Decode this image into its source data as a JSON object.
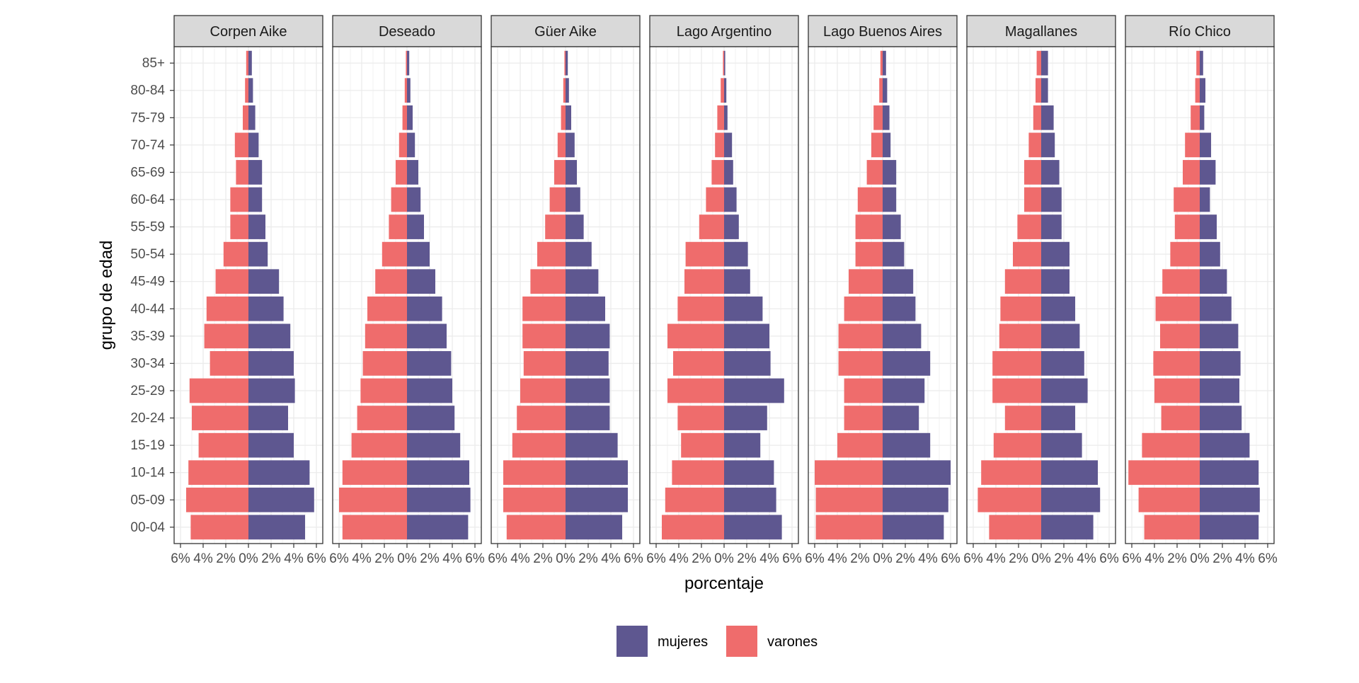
{
  "chart_data": {
    "type": "bar",
    "orientation": "horizontal",
    "layout": "population-pyramid-facets",
    "xlabel": "porcentaje",
    "ylabel": "grupo de edad",
    "x_tick_labels": [
      "6%",
      "4%",
      "2%",
      "0%",
      "2%",
      "4%",
      "6%"
    ],
    "xlim": [
      -6,
      6
    ],
    "grid": true,
    "legend_position": "bottom",
    "age_groups": [
      "00-04",
      "05-09",
      "10-14",
      "15-19",
      "20-24",
      "25-29",
      "30-34",
      "35-39",
      "40-44",
      "45-49",
      "50-54",
      "55-59",
      "60-64",
      "65-69",
      "70-74",
      "75-79",
      "80-84",
      "85+"
    ],
    "series": [
      {
        "name": "mujeres",
        "color": "#5E5790",
        "key": "mujeres"
      },
      {
        "name": "varones",
        "color": "#EF6C6C",
        "key": "varones"
      }
    ],
    "facets": [
      {
        "name": "Corpen Aike",
        "mujeres": [
          5.0,
          5.8,
          5.4,
          4.0,
          3.5,
          4.1,
          4.0,
          3.7,
          3.1,
          2.7,
          1.7,
          1.5,
          1.2,
          1.2,
          0.9,
          0.6,
          0.4,
          0.3
        ],
        "varones": [
          5.1,
          5.5,
          5.3,
          4.4,
          5.0,
          5.2,
          3.4,
          3.9,
          3.7,
          2.9,
          2.2,
          1.6,
          1.6,
          1.1,
          1.2,
          0.5,
          0.3,
          0.2
        ]
      },
      {
        "name": "Deseado",
        "mujeres": [
          5.4,
          5.6,
          5.5,
          4.7,
          4.2,
          4.0,
          3.9,
          3.5,
          3.1,
          2.5,
          2.0,
          1.5,
          1.2,
          1.0,
          0.7,
          0.5,
          0.3,
          0.2
        ],
        "varones": [
          5.7,
          6.0,
          5.7,
          4.9,
          4.4,
          4.1,
          3.9,
          3.7,
          3.5,
          2.8,
          2.2,
          1.6,
          1.4,
          1.0,
          0.7,
          0.4,
          0.2,
          0.1
        ]
      },
      {
        "name": "Güer Aike",
        "mujeres": [
          5.0,
          5.5,
          5.5,
          4.6,
          3.9,
          3.9,
          3.8,
          3.9,
          3.5,
          2.9,
          2.3,
          1.6,
          1.3,
          1.0,
          0.8,
          0.5,
          0.3,
          0.2
        ],
        "varones": [
          5.2,
          5.5,
          5.5,
          4.7,
          4.3,
          4.0,
          3.7,
          3.8,
          3.8,
          3.1,
          2.5,
          1.8,
          1.4,
          1.0,
          0.7,
          0.4,
          0.2,
          0.1
        ]
      },
      {
        "name": "Lago Argentino",
        "mujeres": [
          5.1,
          4.6,
          4.4,
          3.2,
          3.8,
          5.3,
          4.1,
          4.0,
          3.4,
          2.3,
          2.1,
          1.3,
          1.1,
          0.8,
          0.7,
          0.3,
          0.2,
          0.1
        ],
        "varones": [
          5.5,
          5.2,
          4.6,
          3.8,
          4.1,
          5.0,
          4.5,
          5.0,
          4.1,
          3.5,
          3.4,
          2.2,
          1.6,
          1.1,
          0.8,
          0.6,
          0.3,
          0.1
        ]
      },
      {
        "name": "Lago Buenos Aires",
        "mujeres": [
          5.4,
          5.8,
          6.0,
          4.2,
          3.2,
          3.7,
          4.2,
          3.4,
          2.9,
          2.7,
          1.9,
          1.6,
          1.2,
          1.2,
          0.7,
          0.6,
          0.4,
          0.3
        ],
        "varones": [
          5.9,
          5.9,
          6.0,
          4.0,
          3.4,
          3.4,
          3.9,
          3.9,
          3.4,
          3.0,
          2.4,
          2.4,
          2.2,
          1.4,
          1.0,
          0.8,
          0.3,
          0.2
        ]
      },
      {
        "name": "Magallanes",
        "mujeres": [
          4.6,
          5.2,
          5.0,
          3.6,
          3.0,
          4.1,
          3.8,
          3.4,
          3.0,
          2.5,
          2.5,
          1.8,
          1.8,
          1.6,
          1.2,
          1.1,
          0.6,
          0.6
        ],
        "varones": [
          4.6,
          5.6,
          5.3,
          4.2,
          3.2,
          4.3,
          4.3,
          3.7,
          3.6,
          3.2,
          2.5,
          2.1,
          1.5,
          1.5,
          1.1,
          0.7,
          0.5,
          0.4
        ]
      },
      {
        "name": "Río Chico",
        "mujeres": [
          5.2,
          5.3,
          5.2,
          4.4,
          3.7,
          3.5,
          3.6,
          3.4,
          2.8,
          2.4,
          1.8,
          1.5,
          0.9,
          1.4,
          1.0,
          0.4,
          0.5,
          0.3
        ],
        "varones": [
          4.9,
          5.4,
          6.3,
          5.1,
          3.4,
          4.0,
          4.1,
          3.5,
          3.9,
          3.3,
          2.6,
          2.2,
          2.3,
          1.5,
          1.3,
          0.8,
          0.4,
          0.3
        ]
      }
    ]
  }
}
